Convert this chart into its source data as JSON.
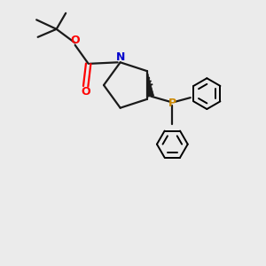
{
  "bg_color": "#ebebeb",
  "bond_color": "#1a1a1a",
  "N_color": "#0000cc",
  "O_color": "#ff0000",
  "P_color": "#cc8800",
  "line_width": 1.6,
  "figsize": [
    3.0,
    3.0
  ],
  "dpi": 100,
  "xlim": [
    0,
    10
  ],
  "ylim": [
    0,
    10
  ]
}
